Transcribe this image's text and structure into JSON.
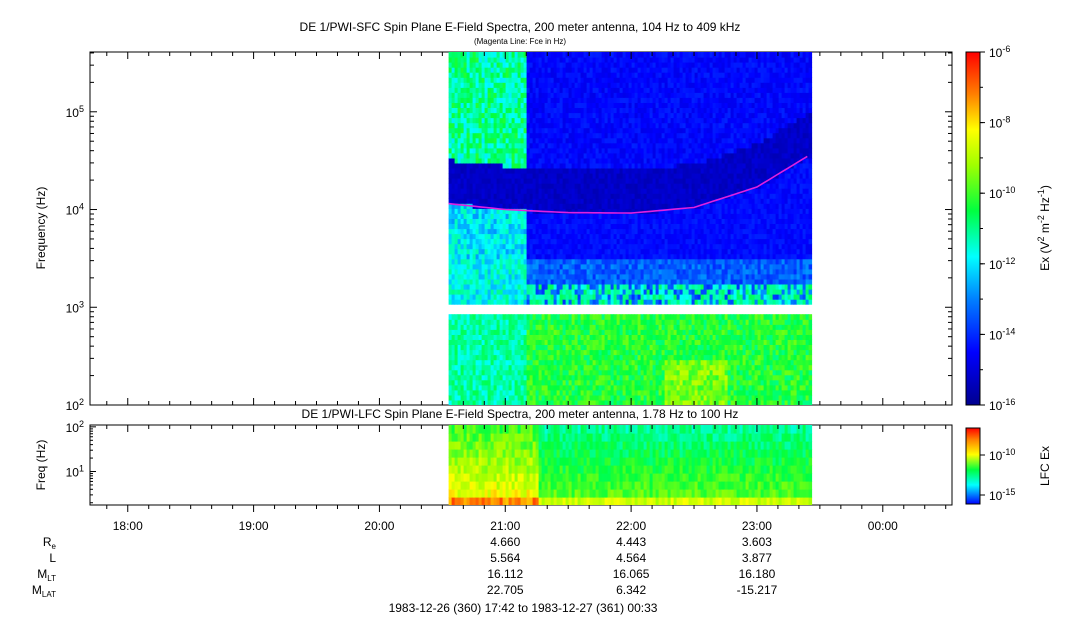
{
  "chart_data": [
    {
      "type": "heatmap",
      "title": "DE 1/PWI-SFC  Spin Plane E-Field Spectra, 200 meter antenna, 104 Hz to 409 kHz",
      "subtitle": "(Magenta Line: Fce in Hz)",
      "ylabel": "Frequency (Hz)",
      "y_scale": "log",
      "ylim": [
        100,
        409000
      ],
      "yticks": [
        {
          "value": 100,
          "base": "10",
          "exp": "2"
        },
        {
          "value": 1000,
          "base": "10",
          "exp": "3"
        },
        {
          "value": 10000,
          "base": "10",
          "exp": "4"
        },
        {
          "value": 100000,
          "base": "10",
          "exp": "5"
        }
      ],
      "data_time_range": [
        "20:33",
        "23:25"
      ],
      "gap_frequency_hz": [
        900,
        1080
      ],
      "colorbar": {
        "label": "Ex (V² m⁻² Hz⁻¹)",
        "label_parts": {
          "base": "Ex (V",
          "s1": "2",
          "m": " m",
          "s2": "-2",
          "hz": " Hz",
          "s3": "-1",
          "close": ")"
        },
        "scale": "log",
        "range": [
          1e-16,
          1e-06
        ],
        "ticks": [
          {
            "base": "10",
            "exp": "-6",
            "v": -6
          },
          {
            "base": "10",
            "exp": "-8",
            "v": -8
          },
          {
            "base": "10",
            "exp": "-10",
            "v": -10
          },
          {
            "base": "10",
            "exp": "-12",
            "v": -12
          },
          {
            "base": "10",
            "exp": "-14",
            "v": -14
          },
          {
            "base": "10",
            "exp": "-16",
            "v": -16
          }
        ]
      },
      "fce_line": {
        "color": "#e020e0",
        "times": [
          "20:33",
          "21:00",
          "21:30",
          "22:00",
          "22:30",
          "23:00",
          "23:25"
        ],
        "freq_hz": [
          11500,
          10000,
          9300,
          9200,
          10500,
          17000,
          36000
        ]
      }
    },
    {
      "type": "heatmap",
      "title": "DE 1/PWI-LFC  Spin Plane E-Field Spectra, 200 meter antenna, 1.78 Hz to 100 Hz",
      "ylabel": "Freq (Hz)",
      "y_scale": "log",
      "ylim": [
        1.78,
        110
      ],
      "yticks": [
        {
          "value": 10,
          "base": "10",
          "exp": "1"
        },
        {
          "value": 100,
          "base": "10",
          "exp": "2"
        }
      ],
      "data_time_range": [
        "20:33",
        "23:25"
      ],
      "colorbar": {
        "label": "LFC Ex",
        "scale": "log",
        "ticks": [
          {
            "base": "10",
            "exp": "-10",
            "v": -10
          },
          {
            "base": "10",
            "exp": "-15",
            "v": -15
          }
        ]
      }
    }
  ],
  "time_axis": {
    "start": "17:42",
    "end": "00:33",
    "ticks": [
      "18:00",
      "19:00",
      "20:00",
      "21:00",
      "22:00",
      "23:00",
      "00:00"
    ]
  },
  "ephemeris": {
    "labels": [
      {
        "base": "R",
        "sub": "e"
      },
      {
        "base": "L",
        "sub": ""
      },
      {
        "base": "M",
        "sub": "LT"
      },
      {
        "base": "M",
        "sub": "LAT"
      }
    ],
    "times": [
      "21:00",
      "22:00",
      "23:00"
    ],
    "values": [
      [
        "4.660",
        "4.443",
        "3.603"
      ],
      [
        "5.564",
        "4.564",
        "3.877"
      ],
      [
        "16.112",
        "16.065",
        "16.180"
      ],
      [
        "22.705",
        "6.342",
        "-15.217"
      ]
    ]
  },
  "footer": "1983-12-26 (360) 17:42 to 1983-12-27 (361) 00:33"
}
